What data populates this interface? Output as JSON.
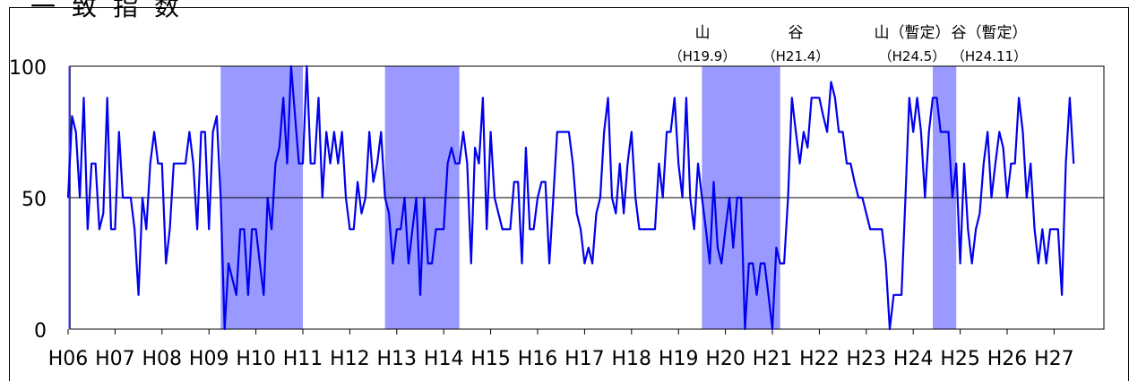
{
  "chart_data": {
    "type": "line",
    "title": "一致指数",
    "xlabel": "",
    "ylabel": "",
    "ylim": [
      0,
      100
    ],
    "yticks": [
      0,
      50,
      100
    ],
    "grid": {
      "y": [
        50
      ]
    },
    "x_start": "H06-01",
    "months_per_point": 1,
    "xticks": [
      "H06",
      "H07",
      "H08",
      "H09",
      "H10",
      "H11",
      "H12",
      "H13",
      "H14",
      "H15",
      "H16",
      "H17",
      "H18",
      "H19",
      "H20",
      "H21",
      "H22",
      "H23",
      "H24",
      "H25",
      "H26",
      "H27"
    ],
    "recessions": [
      {
        "from": 0,
        "to": 0.3
      },
      {
        "from": 39,
        "to": 60
      },
      {
        "from": 81,
        "to": 100
      },
      {
        "from": 162,
        "to": 182
      },
      {
        "from": 221,
        "to": 227
      }
    ],
    "turning_points": [
      {
        "label": "山",
        "date": "（H19.9）"
      },
      {
        "label": "谷",
        "date": "（H21.4）"
      },
      {
        "label": "山（暫定）",
        "date": "（H24.5）"
      },
      {
        "label": "谷（暫定）",
        "date": "（H24.11）"
      }
    ],
    "series": [
      {
        "color": "#0000ee",
        "values": [
          50,
          81,
          75,
          50,
          88,
          38,
          63,
          63,
          38,
          44,
          88,
          38,
          38,
          75,
          50,
          50,
          50,
          38,
          13,
          50,
          38,
          63,
          75,
          63,
          63,
          25,
          38,
          63,
          63,
          63,
          63,
          75,
          63,
          38,
          75,
          75,
          38,
          75,
          81,
          50,
          0,
          25,
          19,
          13,
          38,
          38,
          13,
          38,
          38,
          25,
          13,
          50,
          38,
          63,
          69,
          88,
          63,
          100,
          81,
          63,
          63,
          100,
          63,
          63,
          88,
          50,
          75,
          63,
          75,
          63,
          75,
          50,
          38,
          38,
          56,
          44,
          50,
          75,
          56,
          63,
          75,
          50,
          44,
          25,
          38,
          38,
          50,
          25,
          38,
          50,
          13,
          50,
          25,
          25,
          38,
          38,
          38,
          63,
          69,
          63,
          63,
          75,
          63,
          25,
          69,
          63,
          88,
          38,
          75,
          50,
          44,
          38,
          38,
          38,
          56,
          56,
          25,
          69,
          38,
          38,
          50,
          56,
          56,
          25,
          50,
          75,
          75,
          75,
          75,
          63,
          44,
          38,
          25,
          31,
          25,
          44,
          50,
          75,
          88,
          50,
          44,
          63,
          44,
          63,
          75,
          50,
          38,
          38,
          38,
          38,
          38,
          63,
          50,
          75,
          75,
          88,
          63,
          50,
          88,
          50,
          38,
          63,
          50,
          38,
          25,
          56,
          31,
          25,
          38,
          50,
          31,
          50,
          50,
          0,
          25,
          25,
          13,
          25,
          25,
          13,
          0,
          31,
          25,
          25,
          50,
          88,
          75,
          63,
          75,
          69,
          88,
          88,
          88,
          81,
          75,
          94,
          88,
          75,
          75,
          63,
          63,
          56,
          50,
          50,
          44,
          38,
          38,
          38,
          38,
          25,
          0,
          13,
          13,
          13,
          50,
          88,
          75,
          88,
          75,
          50,
          75,
          88,
          88,
          75,
          75,
          75,
          50,
          63,
          25,
          63,
          38,
          25,
          38,
          44,
          63,
          75,
          50,
          63,
          75,
          69,
          50,
          63,
          63,
          88,
          75,
          50,
          63,
          38,
          25,
          38,
          25,
          38,
          38,
          38,
          13,
          63,
          88,
          63
        ]
      }
    ]
  }
}
